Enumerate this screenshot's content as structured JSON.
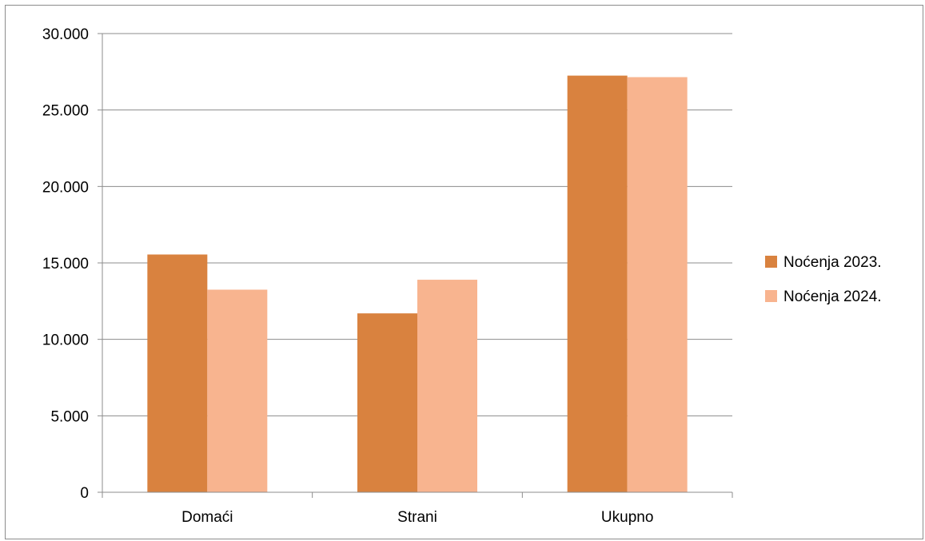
{
  "chart_data": {
    "type": "bar",
    "categories": [
      "Domaći",
      "Strani",
      "Ukupno"
    ],
    "series": [
      {
        "name": "Noćenja 2023.",
        "values": [
          15550,
          11700,
          27250
        ],
        "color": "#d9823f"
      },
      {
        "name": "Noćenja 2024.",
        "values": [
          13250,
          13900,
          27150
        ],
        "color": "#f8b48f"
      }
    ],
    "y_ticks": [
      0,
      5000,
      10000,
      15000,
      20000,
      25000,
      30000
    ],
    "y_tick_labels": [
      "0",
      "5.000",
      "10.000",
      "15.000",
      "20.000",
      "25.000",
      "30.000"
    ],
    "ylim": [
      0,
      30000
    ],
    "grid": true,
    "legend_position": "right"
  }
}
